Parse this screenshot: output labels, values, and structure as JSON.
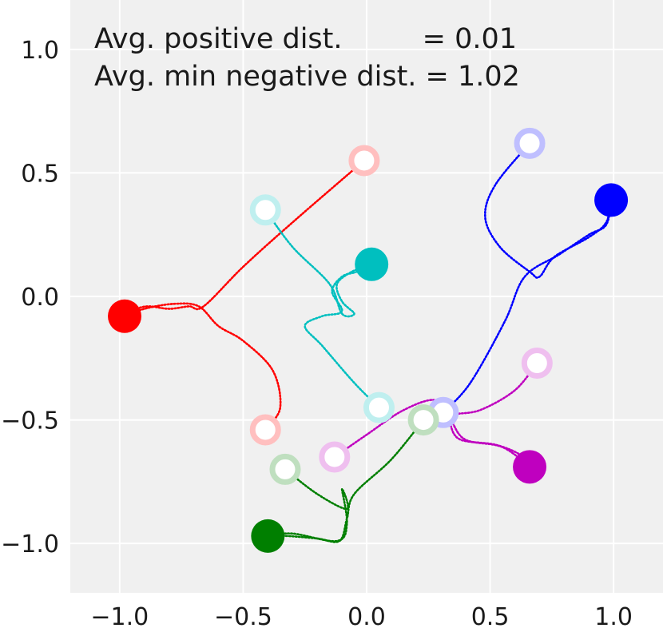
{
  "chart_data": {
    "type": "scatter",
    "title": "",
    "xlabel": "",
    "ylabel": "",
    "xlim": [
      -1.2,
      1.2
    ],
    "ylim": [
      -1.2,
      1.2
    ],
    "grid": true,
    "xticks": [
      "−1.0",
      "−0.5",
      "0.0",
      "0.5",
      "1.0"
    ],
    "xtick_values": [
      -1.0,
      -0.5,
      0.0,
      0.5,
      1.0
    ],
    "yticks": [
      "−1.0",
      "−0.5",
      "0.0",
      "0.5",
      "1.0"
    ],
    "ytick_values": [
      -1.0,
      -0.5,
      0.0,
      0.5,
      1.0
    ],
    "annotations": {
      "line1": "Avg. positive dist.         = 0.01",
      "line2": "Avg. min negative dist. = 1.02"
    },
    "series": [
      {
        "name": "red",
        "color": "#ff0000",
        "filled_points": [
          [
            -0.98,
            -0.08
          ]
        ],
        "hollow_points": [
          [
            -0.01,
            0.55
          ],
          [
            -0.41,
            -0.54
          ]
        ],
        "trajectories": [
          [
            [
              -0.01,
              0.55
            ],
            [
              -0.3,
              0.3
            ],
            [
              -0.5,
              0.12
            ],
            [
              -0.66,
              -0.04
            ],
            [
              -0.72,
              -0.04
            ],
            [
              -0.8,
              -0.05
            ],
            [
              -0.88,
              -0.04
            ],
            [
              -0.93,
              -0.05
            ],
            [
              -0.98,
              -0.08
            ]
          ],
          [
            [
              -0.41,
              -0.54
            ],
            [
              -0.35,
              -0.45
            ],
            [
              -0.38,
              -0.3
            ],
            [
              -0.5,
              -0.18
            ],
            [
              -0.6,
              -0.12
            ],
            [
              -0.68,
              -0.04
            ],
            [
              -0.78,
              -0.03
            ],
            [
              -0.9,
              -0.05
            ],
            [
              -0.98,
              -0.08
            ]
          ]
        ]
      },
      {
        "name": "cyan",
        "color": "#00bfbf",
        "filled_points": [
          [
            0.02,
            0.13
          ]
        ],
        "hollow_points": [
          [
            -0.41,
            0.35
          ],
          [
            0.05,
            -0.45
          ]
        ],
        "trajectories": [
          [
            [
              -0.41,
              0.35
            ],
            [
              -0.3,
              0.2
            ],
            [
              -0.15,
              0.05
            ],
            [
              -0.1,
              -0.07
            ],
            [
              -0.05,
              -0.07
            ],
            [
              -0.1,
              -0.02
            ],
            [
              -0.12,
              0.05
            ],
            [
              -0.06,
              0.1
            ],
            [
              0.02,
              0.13
            ]
          ],
          [
            [
              0.05,
              -0.45
            ],
            [
              -0.05,
              -0.35
            ],
            [
              -0.18,
              -0.2
            ],
            [
              -0.25,
              -0.12
            ],
            [
              -0.18,
              -0.08
            ],
            [
              -0.1,
              -0.06
            ],
            [
              -0.14,
              0.02
            ],
            [
              -0.1,
              0.08
            ],
            [
              -0.04,
              0.1
            ],
            [
              0.02,
              0.13
            ]
          ]
        ]
      },
      {
        "name": "blue",
        "color": "#0000ff",
        "filled_points": [
          [
            0.99,
            0.39
          ]
        ],
        "hollow_points": [
          [
            0.66,
            0.62
          ],
          [
            0.31,
            -0.47
          ]
        ],
        "trajectories": [
          [
            [
              0.66,
              0.62
            ],
            [
              0.52,
              0.45
            ],
            [
              0.48,
              0.32
            ],
            [
              0.54,
              0.2
            ],
            [
              0.66,
              0.1
            ],
            [
              0.7,
              0.08
            ],
            [
              0.76,
              0.16
            ],
            [
              0.9,
              0.24
            ],
            [
              0.97,
              0.3
            ],
            [
              0.99,
              0.39
            ]
          ],
          [
            [
              0.31,
              -0.47
            ],
            [
              0.42,
              -0.35
            ],
            [
              0.56,
              -0.1
            ],
            [
              0.64,
              0.08
            ],
            [
              0.78,
              0.17
            ],
            [
              0.9,
              0.25
            ],
            [
              0.97,
              0.29
            ],
            [
              0.99,
              0.39
            ]
          ]
        ]
      },
      {
        "name": "magenta",
        "color": "#bf00bf",
        "filled_points": [
          [
            0.66,
            -0.69
          ]
        ],
        "hollow_points": [
          [
            0.69,
            -0.27
          ],
          [
            -0.13,
            -0.65
          ]
        ],
        "trajectories": [
          [
            [
              0.69,
              -0.27
            ],
            [
              0.6,
              -0.38
            ],
            [
              0.46,
              -0.46
            ],
            [
              0.35,
              -0.48
            ],
            [
              0.34,
              -0.52
            ],
            [
              0.38,
              -0.58
            ],
            [
              0.52,
              -0.6
            ],
            [
              0.62,
              -0.64
            ],
            [
              0.66,
              -0.69
            ]
          ],
          [
            [
              -0.13,
              -0.65
            ],
            [
              0.0,
              -0.56
            ],
            [
              0.15,
              -0.46
            ],
            [
              0.28,
              -0.42
            ],
            [
              0.34,
              -0.5
            ],
            [
              0.4,
              -0.58
            ],
            [
              0.55,
              -0.61
            ],
            [
              0.66,
              -0.69
            ]
          ]
        ]
      },
      {
        "name": "green",
        "color": "#007f00",
        "filled_points": [
          [
            -0.4,
            -0.97
          ]
        ],
        "hollow_points": [
          [
            0.23,
            -0.5
          ],
          [
            -0.33,
            -0.7
          ]
        ],
        "trajectories": [
          [
            [
              0.23,
              -0.5
            ],
            [
              0.1,
              -0.66
            ],
            [
              -0.05,
              -0.8
            ],
            [
              -0.08,
              -0.9
            ],
            [
              -0.11,
              -0.99
            ],
            [
              -0.2,
              -0.98
            ],
            [
              -0.32,
              -0.97
            ],
            [
              -0.4,
              -0.97
            ]
          ],
          [
            [
              -0.33,
              -0.7
            ],
            [
              -0.2,
              -0.8
            ],
            [
              -0.08,
              -0.86
            ],
            [
              -0.1,
              -0.78
            ],
            [
              -0.08,
              -0.92
            ],
            [
              -0.12,
              -0.99
            ],
            [
              -0.3,
              -0.96
            ],
            [
              -0.4,
              -0.97
            ]
          ]
        ]
      }
    ]
  }
}
